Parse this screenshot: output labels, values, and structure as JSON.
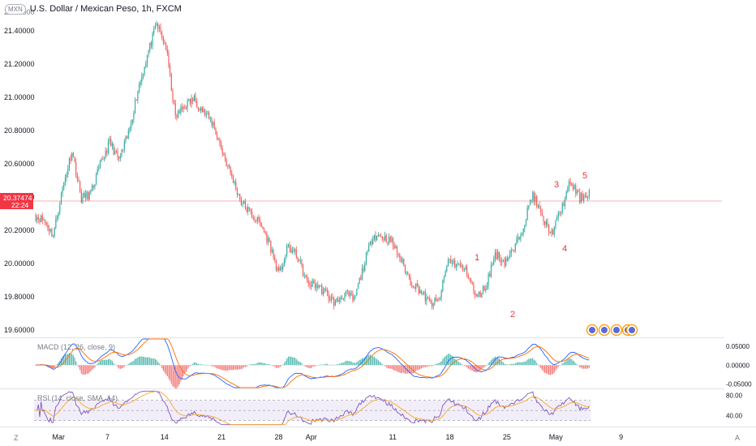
{
  "header": {
    "currency_badge": "MXN",
    "title": "U.S. Dollar / Mexican Peso, 1h, FXCM"
  },
  "price_axis": {
    "ticks": [
      "21.40000",
      "21.20000",
      "21.00000",
      "20.80000",
      "20.60000",
      "20.40000",
      "20.20000",
      "20.00000",
      "19.80000",
      "19.60000"
    ],
    "top_partial": "21.60000"
  },
  "last_price": {
    "value": "20.37474",
    "countdown": "22:24",
    "color": "#f23645"
  },
  "time_axis": {
    "labels": [
      "Mar",
      "7",
      "14",
      "21",
      "28",
      "Apr",
      "11",
      "18",
      "25",
      "May",
      "9"
    ]
  },
  "wave_labels": [
    "1",
    "2",
    "3",
    "4",
    "5"
  ],
  "macd": {
    "label": "MACD (12, 26, close, 9)",
    "axis": [
      "0.05000",
      "0.00000",
      "-0.05000"
    ]
  },
  "rsi": {
    "label": "RSI (14, close, SMA, 14)",
    "axis": [
      "80.00",
      "40.00"
    ]
  },
  "bottom_buttons": {
    "left": "Z",
    "right": "A"
  },
  "colors": {
    "up": "#26a69a",
    "down": "#ef5350",
    "wave_label": "#e53935",
    "macd_line": "#2962ff",
    "signal_line": "#ff6d00",
    "rsi_line": "#7e57c2",
    "rsi_ma": "#f9a825",
    "rsi_band": "#7e57c2"
  },
  "chart_data": {
    "type": "candlestick",
    "title": "U.S. Dollar / Mexican Peso, 1h, FXCM",
    "ylim": [
      19.56,
      21.56
    ],
    "x": [
      "Mar 1",
      "Mar 2",
      "Mar 3",
      "Mar 4",
      "Mar 5",
      "Mar 6",
      "Mar 7",
      "Mar 8",
      "Mar 9",
      "Mar 10",
      "Mar 11",
      "Mar 12",
      "Mar 13",
      "Mar 14",
      "Mar 15",
      "Mar 16",
      "Mar 17",
      "Mar 18",
      "Mar 19",
      "Mar 20",
      "Mar 21",
      "Mar 22",
      "Mar 23",
      "Mar 24",
      "Mar 25",
      "Mar 26",
      "Mar 27",
      "Mar 28",
      "Mar 29",
      "Mar 30",
      "Mar 31",
      "Apr 1",
      "Apr 2",
      "Apr 3",
      "Apr 4",
      "Apr 5",
      "Apr 6",
      "Apr 7",
      "Apr 8",
      "Apr 9",
      "Apr 10",
      "Apr 11",
      "Apr 12",
      "Apr 13",
      "Apr 14",
      "Apr 15",
      "Apr 16",
      "Apr 17",
      "Apr 18",
      "Apr 19",
      "Apr 20",
      "Apr 21",
      "Apr 22",
      "Apr 23",
      "Apr 24",
      "Apr 25",
      "Apr 26",
      "Apr 27",
      "Apr 28",
      "Apr 29"
    ],
    "close_path": [
      20.29,
      20.26,
      20.17,
      20.45,
      20.68,
      20.39,
      20.42,
      20.59,
      20.73,
      20.62,
      20.78,
      21.04,
      21.25,
      21.44,
      21.3,
      20.88,
      20.95,
      20.99,
      20.91,
      20.84,
      20.67,
      20.52,
      20.37,
      20.3,
      20.24,
      20.12,
      19.93,
      20.1,
      20.04,
      19.88,
      19.87,
      19.82,
      19.76,
      19.82,
      19.78,
      19.98,
      20.17,
      20.16,
      20.13,
      20.02,
      19.89,
      19.84,
      19.76,
      19.77,
      20.02,
      19.99,
      19.95,
      19.79,
      19.86,
      20.06,
      20.01,
      20.08,
      20.23,
      20.42,
      20.27,
      20.18,
      20.32,
      20.49,
      20.39,
      20.43
    ],
    "wave_points": [
      {
        "label": "1",
        "x": "Apr 15",
        "y": 20.03
      },
      {
        "label": "2",
        "x": "Apr 18",
        "y": 19.76
      },
      {
        "label": "3",
        "x": "Apr 24",
        "y": 20.47
      },
      {
        "label": "4",
        "x": "Apr 25",
        "y": 20.17
      },
      {
        "label": "5",
        "x": "Apr 28",
        "y": 20.54
      }
    ],
    "last_price": 20.37474,
    "macd_ylim": [
      -0.06,
      0.07
    ],
    "rsi_band": [
      30,
      70
    ]
  }
}
